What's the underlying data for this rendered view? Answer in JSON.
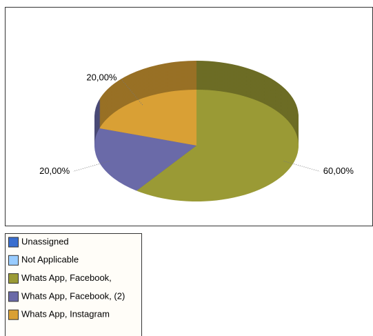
{
  "chart_data": {
    "type": "pie",
    "categories": [
      "Unassigned",
      "Not Applicable",
      "Whats App, Facebook,",
      "Whats App, Facebook, (2)",
      "Whats App, Instagram"
    ],
    "values": [
      0,
      0,
      60,
      20,
      20
    ],
    "value_labels": [
      null,
      null,
      "60,00%",
      "20,00%",
      "20,00%"
    ],
    "colors": [
      "#3a6fd0",
      "#99ccff",
      "#9a9a35",
      "#6a6aa8",
      "#d9a035"
    ]
  }
}
